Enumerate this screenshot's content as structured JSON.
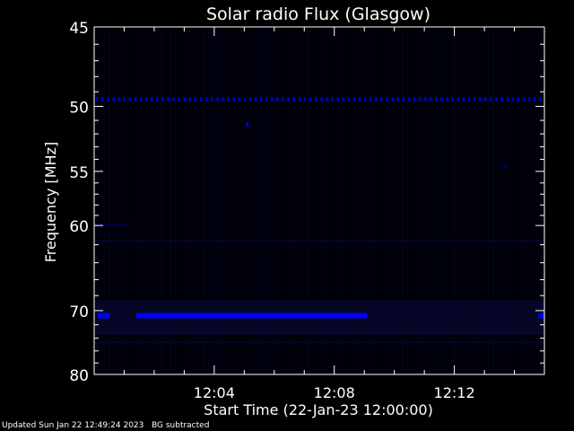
{
  "footer": {
    "updated": "Updated Sun Jan 22 12:49:24 2023",
    "note": "BG subtracted"
  },
  "chart_data": {
    "type": "heatmap",
    "title": "Solar radio Flux (Glasgow)",
    "xlabel": "Start Time (22-Jan-23 12:00:00)",
    "ylabel": "Frequency [MHz]",
    "x_unit": "minutes after 12:00:00",
    "xlim": [
      0,
      15
    ],
    "x_ticks": [
      {
        "value": 4,
        "label": "12:04"
      },
      {
        "value": 8,
        "label": "12:08"
      },
      {
        "value": 12,
        "label": "12:12"
      }
    ],
    "y_scale": "reciprocal",
    "ylim": [
      45,
      80
    ],
    "y_ticks": [
      45,
      50,
      55,
      60,
      70,
      80
    ],
    "y_minor_ticks": [
      46,
      47,
      48,
      49,
      51,
      52,
      53,
      54,
      56,
      57,
      58,
      59,
      62,
      64,
      66,
      68,
      72,
      74,
      76,
      78
    ],
    "colors": {
      "background": "#00000a",
      "band": "#0000ff",
      "faint": "#0a0a3a"
    },
    "bands": [
      {
        "frequency": 49.5,
        "intensity": 0.75,
        "pattern": "dashed",
        "x_range": [
          0,
          15
        ]
      },
      {
        "frequency": 70.7,
        "intensity": 1.0,
        "pattern": "solid",
        "x_range": [
          1.4,
          9.1
        ]
      },
      {
        "frequency": 70.7,
        "intensity": 1.0,
        "pattern": "solid",
        "x_range": [
          0.1,
          0.5
        ]
      },
      {
        "frequency": 70.7,
        "intensity": 0.9,
        "pattern": "solid",
        "x_range": [
          14.8,
          15
        ]
      },
      {
        "frequency": 59.9,
        "intensity": 0.22,
        "pattern": "solid",
        "x_range": [
          0,
          1.2
        ]
      }
    ],
    "spots": [
      {
        "x": 5.1,
        "frequency": 51.3,
        "intensity": 0.8
      },
      {
        "x": 13.7,
        "frequency": 54.5,
        "intensity": 0.35
      }
    ]
  }
}
